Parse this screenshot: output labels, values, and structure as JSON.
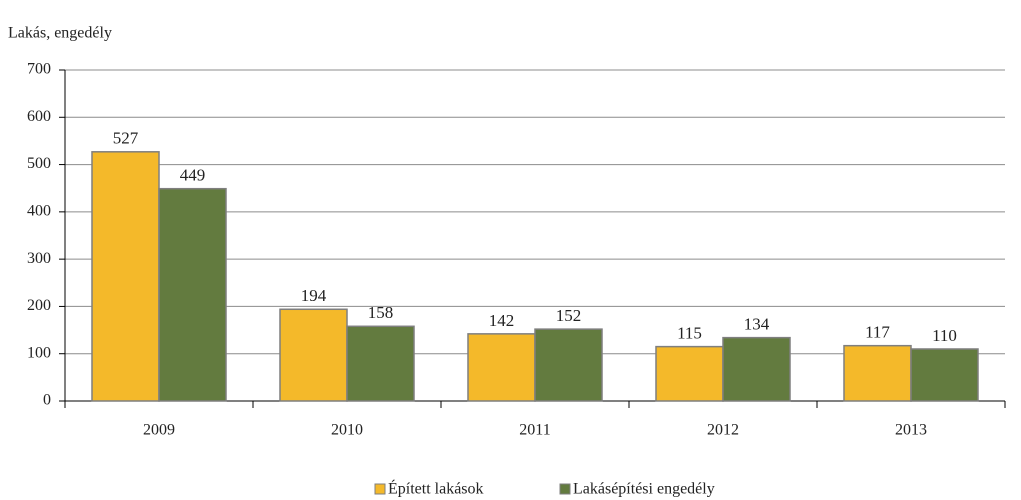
{
  "chart_data": {
    "type": "bar",
    "y_axis_label": "Lakás, engedély",
    "categories": [
      "2009",
      "2010",
      "2011",
      "2012",
      "2013"
    ],
    "series": [
      {
        "name": "Épített lakások",
        "color": "#f4b92a",
        "values": [
          527,
          194,
          142,
          115,
          117
        ]
      },
      {
        "name": "Lakásépítési engedély",
        "color": "#637b3f",
        "values": [
          449,
          158,
          152,
          134,
          110
        ]
      }
    ],
    "ylim": [
      0,
      700
    ],
    "yticks": [
      0,
      100,
      200,
      300,
      400,
      500,
      600,
      700
    ],
    "grid": true,
    "legend": "bottom"
  }
}
